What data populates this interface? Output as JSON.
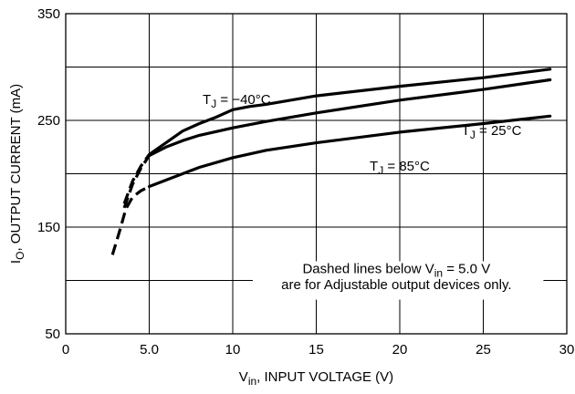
{
  "chart_data": {
    "type": "line",
    "xlabel": {
      "main": "V",
      "sub": "in",
      "rest": ", INPUT VOLTAGE (V)"
    },
    "ylabel": {
      "main": "I",
      "sub": "O",
      "rest": ", OUTPUT CURRENT (mA)"
    },
    "xlim": [
      0,
      30
    ],
    "ylim": [
      50,
      350
    ],
    "grid": true,
    "x_ticks": [
      {
        "value": 0,
        "label": "0"
      },
      {
        "value": 5,
        "label": "5.0"
      },
      {
        "value": 10,
        "label": "10"
      },
      {
        "value": 15,
        "label": "15"
      },
      {
        "value": 20,
        "label": "20"
      },
      {
        "value": 25,
        "label": "25"
      },
      {
        "value": 30,
        "label": "30"
      }
    ],
    "y_ticks": [
      {
        "value": 50,
        "label": "50"
      },
      {
        "value": 150,
        "label": "150"
      },
      {
        "value": 250,
        "label": "250"
      },
      {
        "value": 350,
        "label": "350"
      }
    ],
    "y_gridlines": [
      50,
      100,
      150,
      200,
      250,
      300,
      350
    ],
    "series": [
      {
        "name": "TJ = −40°C",
        "label_parts": [
          "T",
          "J",
          " = −40°C"
        ],
        "dashed_below_x": 5.0,
        "x": [
          3.5,
          4.0,
          4.5,
          5.0,
          6.0,
          7.0,
          8.0,
          9.0,
          10.0,
          11.0,
          12.0,
          15.0,
          20.0,
          25.0,
          29.0
        ],
        "y": [
          172,
          193,
          207,
          218,
          229,
          240,
          247,
          253,
          260,
          263,
          265,
          273,
          282,
          290,
          298
        ]
      },
      {
        "name": "TJ = 25°C",
        "label_parts": [
          "T",
          "J",
          " = 25°C"
        ],
        "dashed_below_x": 5.0,
        "x": [
          3.5,
          4.0,
          4.5,
          5.0,
          6.0,
          7.0,
          8.0,
          10.0,
          12.0,
          15.0,
          20.0,
          25.0,
          29.0
        ],
        "y": [
          168,
          190,
          205,
          217,
          225,
          231,
          236,
          243,
          249,
          257,
          269,
          279,
          288
        ]
      },
      {
        "name": "TJ = 85°C",
        "label_parts": [
          "T",
          "J",
          " = 85°C"
        ],
        "dashed_below_x": 5.0,
        "x": [
          2.8,
          3.2,
          3.6,
          4.0,
          4.5,
          5.0,
          6.0,
          7.0,
          8.0,
          10.0,
          12.0,
          15.0,
          20.0,
          25.0,
          29.0
        ],
        "y": [
          124,
          145,
          167,
          178,
          184,
          188,
          194,
          200,
          206,
          215,
          222,
          229,
          239,
          247,
          254
        ]
      }
    ],
    "note_lines": [
      {
        "pre": "Dashed lines below V",
        "sub": "in",
        "post": " = 5.0 V"
      },
      {
        "pre": "are for Adjustable output devices only.",
        "sub": "",
        "post": ""
      }
    ]
  }
}
